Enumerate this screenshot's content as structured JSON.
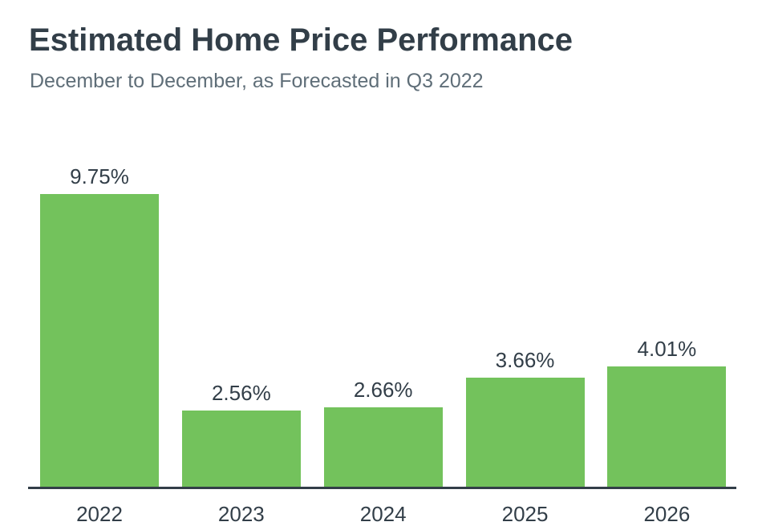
{
  "header": {
    "title": "Estimated Home Price Performance",
    "subtitle": "December to December, as Forecasted in Q3 2022"
  },
  "chart_data": {
    "type": "bar",
    "title": "Estimated Home Price Performance",
    "subtitle": "December to December, as Forecasted in Q3 2022",
    "categories": [
      "2022",
      "2023",
      "2024",
      "2025",
      "2026"
    ],
    "values": [
      9.75,
      2.56,
      2.66,
      3.66,
      4.01
    ],
    "value_labels": [
      "9.75%",
      "2.56%",
      "2.66%",
      "3.66%",
      "4.01%"
    ],
    "xlabel": "",
    "ylabel": "",
    "ylim": [
      0,
      10.5
    ],
    "grid": false,
    "legend": false,
    "y_axis_visible": false,
    "x_axis_line": true,
    "colors": {
      "bar": "#73c25c",
      "text_dark": "#323e48",
      "subtitle_gray": "#5f6e78",
      "axis_line": "#323e48",
      "background": "#ffffff"
    }
  }
}
